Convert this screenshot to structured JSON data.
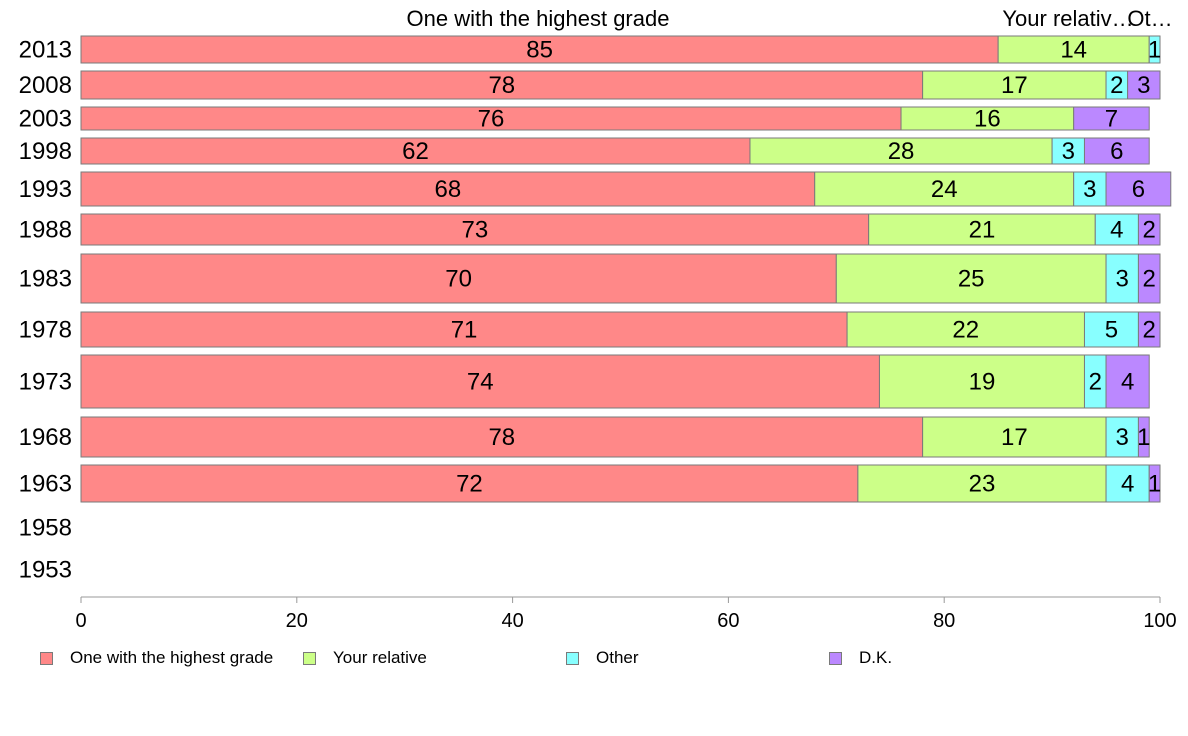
{
  "chart_data": {
    "type": "bar",
    "orientation": "horizontal",
    "stacked": true,
    "header_labels": [
      "One with the highest grade",
      "Your relativ…",
      "Ot…"
    ],
    "categories": [
      "2013",
      "2008",
      "2003",
      "1998",
      "1993",
      "1988",
      "1983",
      "1978",
      "1973",
      "1968",
      "1963",
      "1958",
      "1953"
    ],
    "series": [
      {
        "name": "One with the highest grade",
        "color": "#ff8888",
        "values": [
          85,
          78,
          76,
          62,
          68,
          73,
          70,
          71,
          74,
          78,
          72,
          null,
          null
        ]
      },
      {
        "name": "Your relative",
        "color": "#ccff88",
        "values": [
          14,
          17,
          16,
          28,
          24,
          21,
          25,
          22,
          19,
          17,
          23,
          null,
          null
        ]
      },
      {
        "name": "Other",
        "color": "#88ffff",
        "values": [
          1,
          2,
          0,
          3,
          3,
          4,
          3,
          5,
          2,
          3,
          4,
          null,
          null
        ]
      },
      {
        "name": "D.K.",
        "color": "#bb88ff",
        "values": [
          0,
          3,
          7,
          6,
          6,
          2,
          2,
          2,
          4,
          1,
          1,
          null,
          null
        ]
      }
    ],
    "xlim": [
      0,
      100
    ],
    "xticks": [
      0,
      20,
      40,
      60,
      80,
      100
    ],
    "grid": false,
    "legend_position": "bottom"
  }
}
